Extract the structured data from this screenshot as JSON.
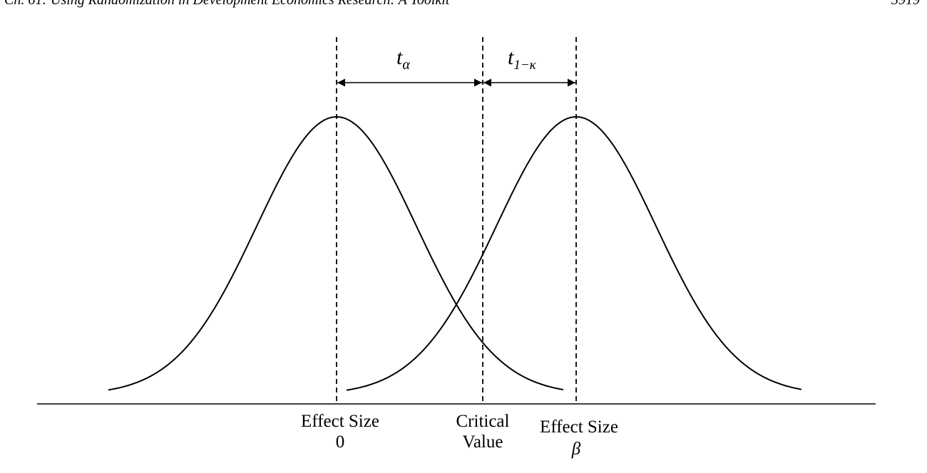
{
  "header": {
    "chapter": "Ch. 61:   Using Randomization in Development Economics Research: A Toolkit",
    "page": "3919"
  },
  "labels": {
    "t_alpha": {
      "base": "t",
      "sub": "α"
    },
    "t_one_minus_kappa": {
      "base": "t",
      "sub": "1−κ"
    },
    "effect_size_0": {
      "line1": "Effect Size",
      "line2": "0"
    },
    "critical_value": {
      "line1": "Critical",
      "line2": "Value"
    },
    "effect_size_beta": {
      "line1": "Effect Size",
      "line2": "β"
    }
  },
  "colors": {
    "ink": "#000000",
    "background": "#ffffff"
  }
}
